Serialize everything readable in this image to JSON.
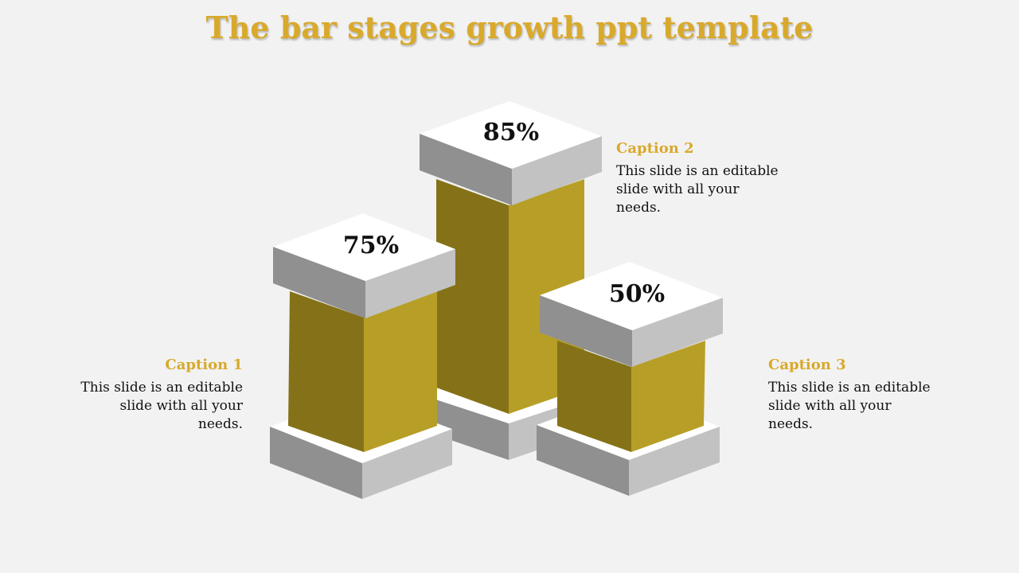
{
  "slide": {
    "title": "The bar stages growth ppt template"
  },
  "bars": [
    {
      "value_label": "75%",
      "value": 75
    },
    {
      "value_label": "85%",
      "value": 85
    },
    {
      "value_label": "50%",
      "value": 50
    }
  ],
  "captions": [
    {
      "title": "Caption 1",
      "body": "This slide is an editable slide with all your needs."
    },
    {
      "title": "Caption 2",
      "body": "This slide is an editable slide with all your needs."
    },
    {
      "title": "Caption 3",
      "body": "This slide is an editable slide with all your needs."
    }
  ],
  "colors": {
    "accent": "#d9a92b",
    "bar_dark": "#857218",
    "bar_light": "#b79f27",
    "slab_top": "#ffffff",
    "slab_left": "#909090",
    "slab_right": "#c2c2c2",
    "background": "#f2f2f2"
  }
}
